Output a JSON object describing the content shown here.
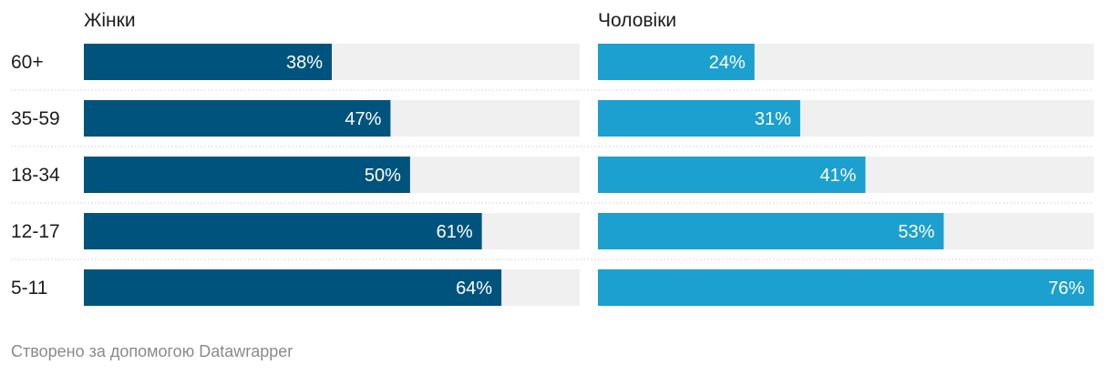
{
  "chart_data": {
    "type": "bar",
    "orientation": "horizontal",
    "layout": "small-multiples",
    "categories": [
      "60+",
      "35-59",
      "18-34",
      "12-17",
      "5-11"
    ],
    "series": [
      {
        "name": "Жінки",
        "values": [
          38,
          47,
          50,
          61,
          64
        ],
        "labels": [
          "38%",
          "47%",
          "50%",
          "61%",
          "64%"
        ],
        "color": "#00537d"
      },
      {
        "name": "Чоловіки",
        "values": [
          24,
          31,
          41,
          53,
          76
        ],
        "labels": [
          "24%",
          "31%",
          "41%",
          "53%",
          "76%"
        ],
        "color": "#1ba0cf"
      }
    ],
    "xlim": [
      0,
      76
    ],
    "background_color": "#f0f0f0",
    "divider_color": "#d9d9d9",
    "grid": false,
    "legend": "none"
  },
  "footer": {
    "credit": "Створено за допомогою Datawrapper"
  }
}
